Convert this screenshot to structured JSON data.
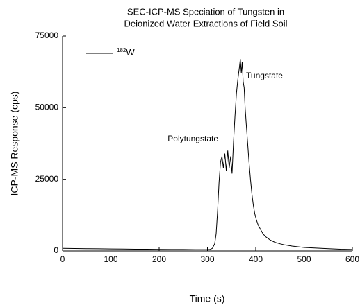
{
  "chart_data": {
    "type": "line",
    "title": [
      "SEC-ICP-MS Speciation of Tungsten in",
      "Deionized Water Extractions of Field Soil"
    ],
    "x_label": "Time (s)",
    "y_label": "ICP-MS Response (cps)",
    "x": [
      0,
      25,
      50,
      75,
      100,
      125,
      150,
      175,
      200,
      225,
      250,
      275,
      300,
      305,
      310,
      315,
      318,
      321,
      324,
      327,
      330,
      333,
      336,
      339,
      342,
      345,
      348,
      351,
      354,
      357,
      360,
      363,
      366,
      368,
      370,
      372,
      374,
      376,
      378,
      380,
      383,
      386,
      389,
      392,
      395,
      398,
      401,
      405,
      410,
      415,
      420,
      430,
      440,
      450,
      460,
      475,
      500,
      525,
      550,
      575,
      600
    ],
    "series": [
      {
        "name": "W",
        "superscript": "182",
        "color": "#000000",
        "values": [
          900,
          850,
          800,
          750,
          700,
          650,
          600,
          600,
          550,
          500,
          500,
          450,
          450,
          500,
          900,
          2500,
          6000,
          14000,
          24000,
          31000,
          33000,
          29000,
          34000,
          28000,
          35000,
          29000,
          33000,
          27000,
          38000,
          47000,
          55000,
          60000,
          64000,
          67000,
          62000,
          66000,
          59000,
          57000,
          50000,
          45000,
          38000,
          31000,
          25000,
          20000,
          16000,
          13000,
          11000,
          9000,
          7500,
          6000,
          5000,
          3800,
          3000,
          2500,
          2100,
          1700,
          1200,
          1000,
          800,
          600,
          500
        ]
      }
    ],
    "annotations": [
      {
        "text": "Polytungstate",
        "x": 270,
        "y": 39000
      },
      {
        "text": "Tungstate",
        "x": 418,
        "y": 61000
      }
    ],
    "xlim": [
      0,
      600
    ],
    "xticks": [
      0,
      100,
      200,
      300,
      400,
      500,
      600
    ],
    "ylim": [
      0,
      75000
    ],
    "yticks": [
      0,
      25000,
      50000,
      75000
    ]
  }
}
